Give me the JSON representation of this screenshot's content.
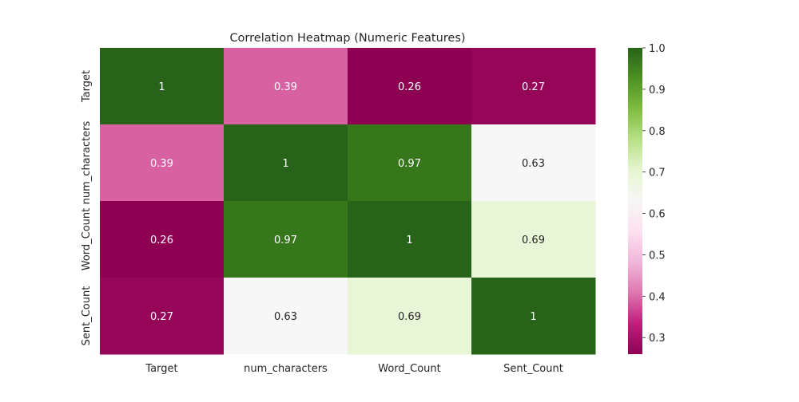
{
  "chart_data": {
    "type": "heatmap",
    "title": "Correlation Heatmap (Numeric Features)",
    "xlabel": "",
    "ylabel": "",
    "x_categories": [
      "Target",
      "num_characters",
      "Word_Count",
      "Sent_Count"
    ],
    "y_categories": [
      "Target",
      "num_characters",
      "Word_Count",
      "Sent_Count"
    ],
    "values": [
      [
        1,
        0.39,
        0.26,
        0.27
      ],
      [
        0.39,
        1,
        0.97,
        0.63
      ],
      [
        0.26,
        0.97,
        1,
        0.69
      ],
      [
        0.27,
        0.63,
        0.69,
        1
      ]
    ],
    "annotations": [
      [
        "1",
        "0.39",
        "0.26",
        "0.27"
      ],
      [
        "0.39",
        "1",
        "0.97",
        "0.63"
      ],
      [
        "0.26",
        "0.97",
        "1",
        "0.69"
      ],
      [
        "0.27",
        "0.63",
        "0.69",
        "1"
      ]
    ],
    "colormap": "PiYG",
    "vmin": 0.26,
    "vmax": 1.0,
    "colorbar_ticks": [
      "0.3",
      "0.4",
      "0.5",
      "0.6",
      "0.7",
      "0.8",
      "0.9",
      "1.0"
    ],
    "colorbar_tick_values": [
      0.3,
      0.4,
      0.5,
      0.6,
      0.7,
      0.8,
      0.9,
      1.0
    ],
    "colors": {
      "low": "#8e0152",
      "mid": "#f7f7f7",
      "high": "#276419",
      "annotation_light": "#ffffff",
      "annotation_dark": "#262626"
    }
  }
}
